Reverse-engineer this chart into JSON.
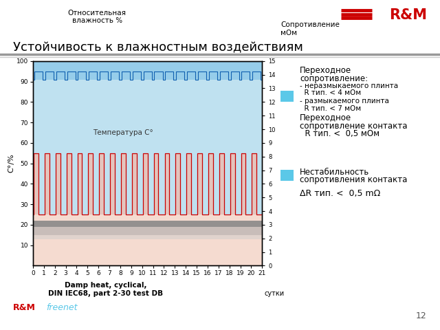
{
  "title": "Устойчивость к влажностным воздействиям",
  "logo_text": "R&M",
  "page_num": "12",
  "brand_text": "freenet",
  "left_ylabel": "C°/%",
  "left_title": "Относительная\nвлажность %",
  "right_ylabel_top": "Сопротивление",
  "right_ylabel_bot": "мОм",
  "xlabel": "сутки",
  "xlabel_bottom": "Damp heat, cyclical,\nDIN IEC68, part 2-30 test DB",
  "temp_label": "Температура C°",
  "xlim": [
    0,
    21
  ],
  "ylim": [
    0,
    100
  ],
  "x_ticks": [
    0,
    1,
    2,
    3,
    4,
    5,
    6,
    7,
    8,
    9,
    10,
    11,
    12,
    13,
    14,
    15,
    16,
    17,
    18,
    19,
    20,
    21
  ],
  "y_ticks_left": [
    10,
    20,
    30,
    40,
    50,
    60,
    70,
    80,
    90,
    100
  ],
  "y_ticks_right": [
    0,
    1,
    2,
    3,
    4,
    5,
    6,
    7,
    8,
    9,
    10,
    11,
    12,
    13,
    14,
    15
  ],
  "num_cycles": 21,
  "background_color": "#ffffff",
  "humidity_wave_color": "#1060b0",
  "temp_wave_color": "#cc0000",
  "blue_area_color": "#87ceeb",
  "light_blue_color": "#b8dff0",
  "pink_color": "#f5c8b8",
  "gray_dark_color": "#888888",
  "gray_light_color": "#cccccc",
  "legend_bullet_color": "#5bc8e8",
  "separator_color1": "#999999",
  "separator_color2": "#cccccc"
}
